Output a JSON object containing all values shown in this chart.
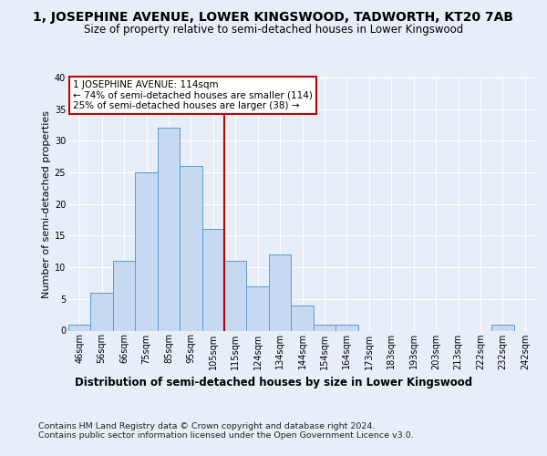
{
  "title": "1, JOSEPHINE AVENUE, LOWER KINGSWOOD, TADWORTH, KT20 7AB",
  "subtitle": "Size of property relative to semi-detached houses in Lower Kingswood",
  "xlabel_dist": "Distribution of semi-detached houses by size in Lower Kingswood",
  "ylabel": "Number of semi-detached properties",
  "footer1": "Contains HM Land Registry data © Crown copyright and database right 2024.",
  "footer2": "Contains public sector information licensed under the Open Government Licence v3.0.",
  "bin_labels": [
    "46sqm",
    "56sqm",
    "66sqm",
    "75sqm",
    "85sqm",
    "95sqm",
    "105sqm",
    "115sqm",
    "124sqm",
    "134sqm",
    "144sqm",
    "154sqm",
    "164sqm",
    "173sqm",
    "183sqm",
    "193sqm",
    "203sqm",
    "213sqm",
    "222sqm",
    "232sqm",
    "242sqm"
  ],
  "bar_heights": [
    1,
    6,
    11,
    25,
    32,
    26,
    16,
    11,
    7,
    12,
    4,
    1,
    1,
    0,
    0,
    0,
    0,
    0,
    0,
    1,
    0
  ],
  "bar_color": "#c6d9f0",
  "bar_edge_color": "#5b9bd5",
  "vline_color": "#c00000",
  "vline_bin_index": 7,
  "annotation_title": "1 JOSEPHINE AVENUE: 114sqm",
  "annotation_line1": "← 74% of semi-detached houses are smaller (114)",
  "annotation_line2": "25% of semi-detached houses are larger (38) →",
  "annotation_box_color": "#ffffff",
  "annotation_box_edge": "#c00000",
  "ylim": [
    0,
    40
  ],
  "yticks": [
    0,
    5,
    10,
    15,
    20,
    25,
    30,
    35,
    40
  ],
  "background_color": "#e8eef7",
  "axes_background": "#e8eef7",
  "grid_color": "#ffffff",
  "title_fontsize": 10,
  "subtitle_fontsize": 8.5,
  "ylabel_fontsize": 8,
  "xlabel_dist_fontsize": 8.5,
  "footer_fontsize": 6.8,
  "tick_fontsize": 7,
  "annot_fontsize": 7.5
}
